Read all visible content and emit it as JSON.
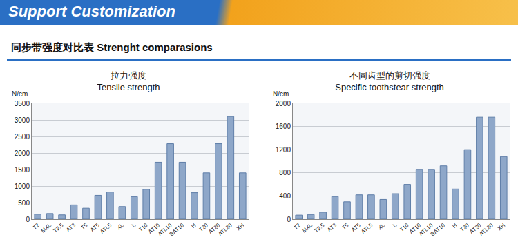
{
  "header": {
    "banner": "Support Customization",
    "title": "同步带强度对比表 Strenght comparasions"
  },
  "chart_data": [
    {
      "type": "bar",
      "title": "拉力强度",
      "subtitle": "Tensile strength",
      "y_label": "N/cm",
      "categories": [
        "T2",
        "MXL",
        "T2.5",
        "AT3",
        "T5",
        "AT5",
        "ATL5",
        "XL",
        "L",
        "T10",
        "AT10",
        "ATL10",
        "BAT10",
        "H",
        "T20",
        "AT20",
        "ATL20",
        "XH"
      ],
      "values": [
        150,
        170,
        130,
        430,
        330,
        720,
        820,
        380,
        680,
        900,
        1720,
        2280,
        1720,
        800,
        1400,
        2280,
        3100,
        1400
      ],
      "color": "#8ea7c9",
      "ylim": [
        0,
        3500
      ],
      "yticks": [
        0,
        500,
        1000,
        1500,
        2000,
        2500,
        3000,
        3500
      ],
      "grid": true
    },
    {
      "type": "bar",
      "title": "不同齿型的剪切强度",
      "subtitle": "Specific toothstear strength",
      "y_label": "N/cm",
      "categories": [
        "T2",
        "MXL",
        "T2.5",
        "AT3",
        "T5",
        "AT5",
        "ATL5",
        "XL",
        "L",
        "T10",
        "AT10",
        "ATL10",
        "BAT10",
        "H",
        "T20",
        "AT20",
        "ATL20",
        "XH"
      ],
      "values": [
        70,
        80,
        120,
        390,
        300,
        420,
        420,
        340,
        440,
        600,
        860,
        860,
        920,
        520,
        1200,
        1760,
        1760,
        1080
      ],
      "color": "#8ea7c9",
      "ylim": [
        0,
        2000
      ],
      "yticks": [
        0,
        400,
        800,
        1200,
        1600,
        2000
      ],
      "grid": true
    }
  ]
}
